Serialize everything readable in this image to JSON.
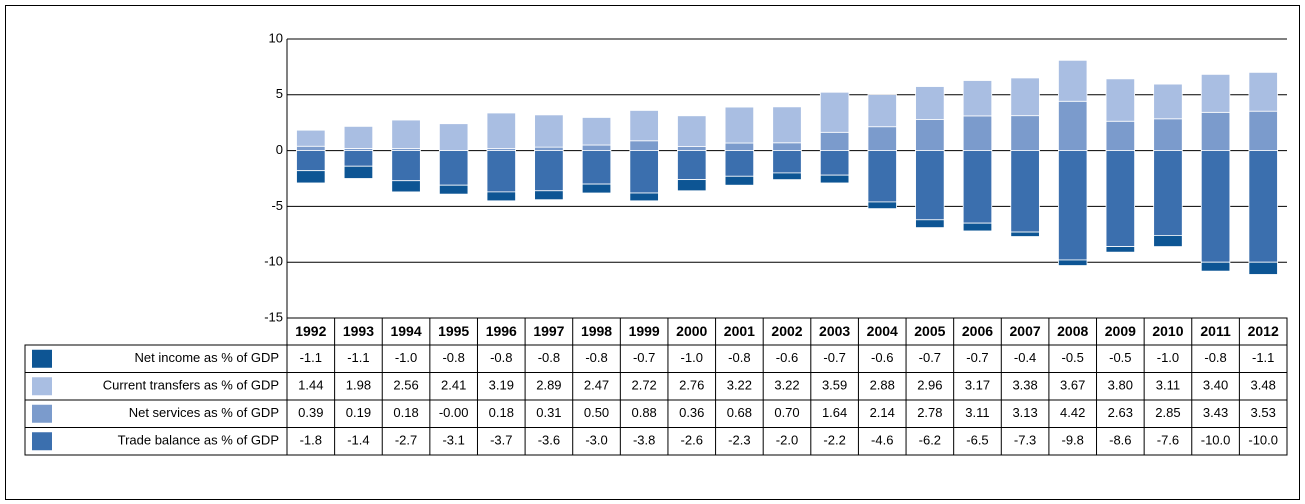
{
  "chart_data": {
    "type": "bar",
    "stacked": true,
    "categories": [
      "1992",
      "1993",
      "1994",
      "1995",
      "1996",
      "1997",
      "1998",
      "1999",
      "2000",
      "2001",
      "2002",
      "2003",
      "2004",
      "2005",
      "2006",
      "2007",
      "2008",
      "2009",
      "2010",
      "2011",
      "2012"
    ],
    "series": [
      {
        "name": "Net income as % of GDP",
        "color": "#0d5594",
        "values": [
          -1.1,
          -1.1,
          -1.0,
          -0.8,
          -0.8,
          -0.8,
          -0.8,
          -0.7,
          -1.0,
          -0.8,
          -0.6,
          -0.7,
          -0.6,
          -0.7,
          -0.7,
          -0.4,
          -0.5,
          -0.5,
          -1.0,
          -0.8,
          -1.1
        ],
        "value_labels": [
          "-1.1",
          "-1.1",
          "-1.0",
          "-0.8",
          "-0.8",
          "-0.8",
          "-0.8",
          "-0.7",
          "-1.0",
          "-0.8",
          "-0.6",
          "-0.7",
          "-0.6",
          "-0.7",
          "-0.7",
          "-0.4",
          "-0.5",
          "-0.5",
          "-1.0",
          "-0.8",
          "-1.1"
        ]
      },
      {
        "name": "Current transfers as % of GDP",
        "color": "#a9bee2",
        "values": [
          1.44,
          1.98,
          2.56,
          2.41,
          3.19,
          2.89,
          2.47,
          2.72,
          2.76,
          3.22,
          3.22,
          3.59,
          2.88,
          2.96,
          3.17,
          3.38,
          3.67,
          3.8,
          3.11,
          3.4,
          3.48
        ],
        "value_labels": [
          "1.44",
          "1.98",
          "2.56",
          "2.41",
          "3.19",
          "2.89",
          "2.47",
          "2.72",
          "2.76",
          "3.22",
          "3.22",
          "3.59",
          "2.88",
          "2.96",
          "3.17",
          "3.38",
          "3.67",
          "3.80",
          "3.11",
          "3.40",
          "3.48"
        ]
      },
      {
        "name": "Net services as % of GDP",
        "color": "#7b9bcc",
        "values": [
          0.39,
          0.19,
          0.18,
          -0.0,
          0.18,
          0.31,
          0.5,
          0.88,
          0.36,
          0.68,
          0.7,
          1.64,
          2.14,
          2.78,
          3.11,
          3.13,
          4.42,
          2.63,
          2.85,
          3.43,
          3.53
        ],
        "value_labels": [
          "0.39",
          "0.19",
          "0.18",
          "-0.00",
          "0.18",
          "0.31",
          "0.50",
          "0.88",
          "0.36",
          "0.68",
          "0.70",
          "1.64",
          "2.14",
          "2.78",
          "3.11",
          "3.13",
          "4.42",
          "2.63",
          "2.85",
          "3.43",
          "3.53"
        ]
      },
      {
        "name": "Trade balance as % of GDP",
        "color": "#3b6fae",
        "values": [
          -1.8,
          -1.4,
          -2.7,
          -3.1,
          -3.7,
          -3.6,
          -3.0,
          -3.8,
          -2.6,
          -2.3,
          -2.0,
          -2.2,
          -4.6,
          -6.2,
          -6.5,
          -7.3,
          -9.8,
          -8.6,
          -7.6,
          -10.0,
          -10.0
        ],
        "value_labels": [
          "-1.8",
          "-1.4",
          "-2.7",
          "-3.1",
          "-3.7",
          "-3.6",
          "-3.0",
          "-3.8",
          "-2.6",
          "-2.3",
          "-2.0",
          "-2.2",
          "-4.6",
          "-6.2",
          "-6.5",
          "-7.3",
          "-9.8",
          "-8.6",
          "-7.6",
          "-10.0",
          "-10.0"
        ]
      }
    ],
    "ylim": [
      -15,
      10
    ],
    "yticks": [
      -15,
      -10,
      -5,
      0,
      5,
      10
    ],
    "grid": true
  }
}
